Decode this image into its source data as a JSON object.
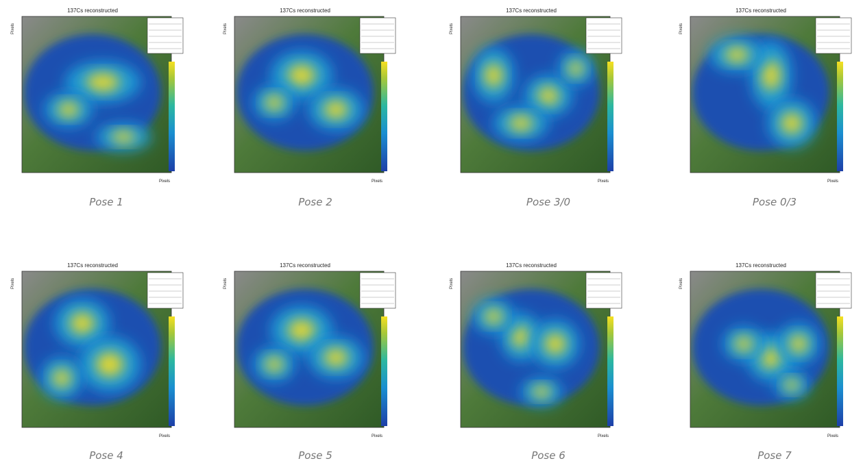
{
  "figure": {
    "panels": [
      {
        "title": "137Cs reconstructed",
        "x_label": "Pixels",
        "y_label": "Pixels",
        "caption": "Pose 1"
      },
      {
        "title": "137Cs reconstructed",
        "x_label": "Pixels",
        "y_label": "Pixels",
        "caption": "Pose 2"
      },
      {
        "title": "137Cs reconstructed",
        "x_label": "Pixels",
        "y_label": "Pixels",
        "caption": "Pose 3/0"
      },
      {
        "title": "137Cs reconstructed",
        "x_label": "Pixels",
        "y_label": "Pixels",
        "caption": "Pose 0/3"
      },
      {
        "title": "137Cs reconstructed",
        "x_label": "Pixels",
        "y_label": "Pixels",
        "caption": "Pose 4"
      },
      {
        "title": "137Cs reconstructed",
        "x_label": "Pixels",
        "y_label": "Pixels",
        "caption": "Pose 5"
      },
      {
        "title": "137Cs reconstructed",
        "x_label": "Pixels",
        "y_label": "Pixels",
        "caption": "Pose 6"
      },
      {
        "title": "137Cs reconstructed",
        "x_label": "Pixels",
        "y_label": "Pixels",
        "caption": "Pose 7"
      }
    ]
  }
}
